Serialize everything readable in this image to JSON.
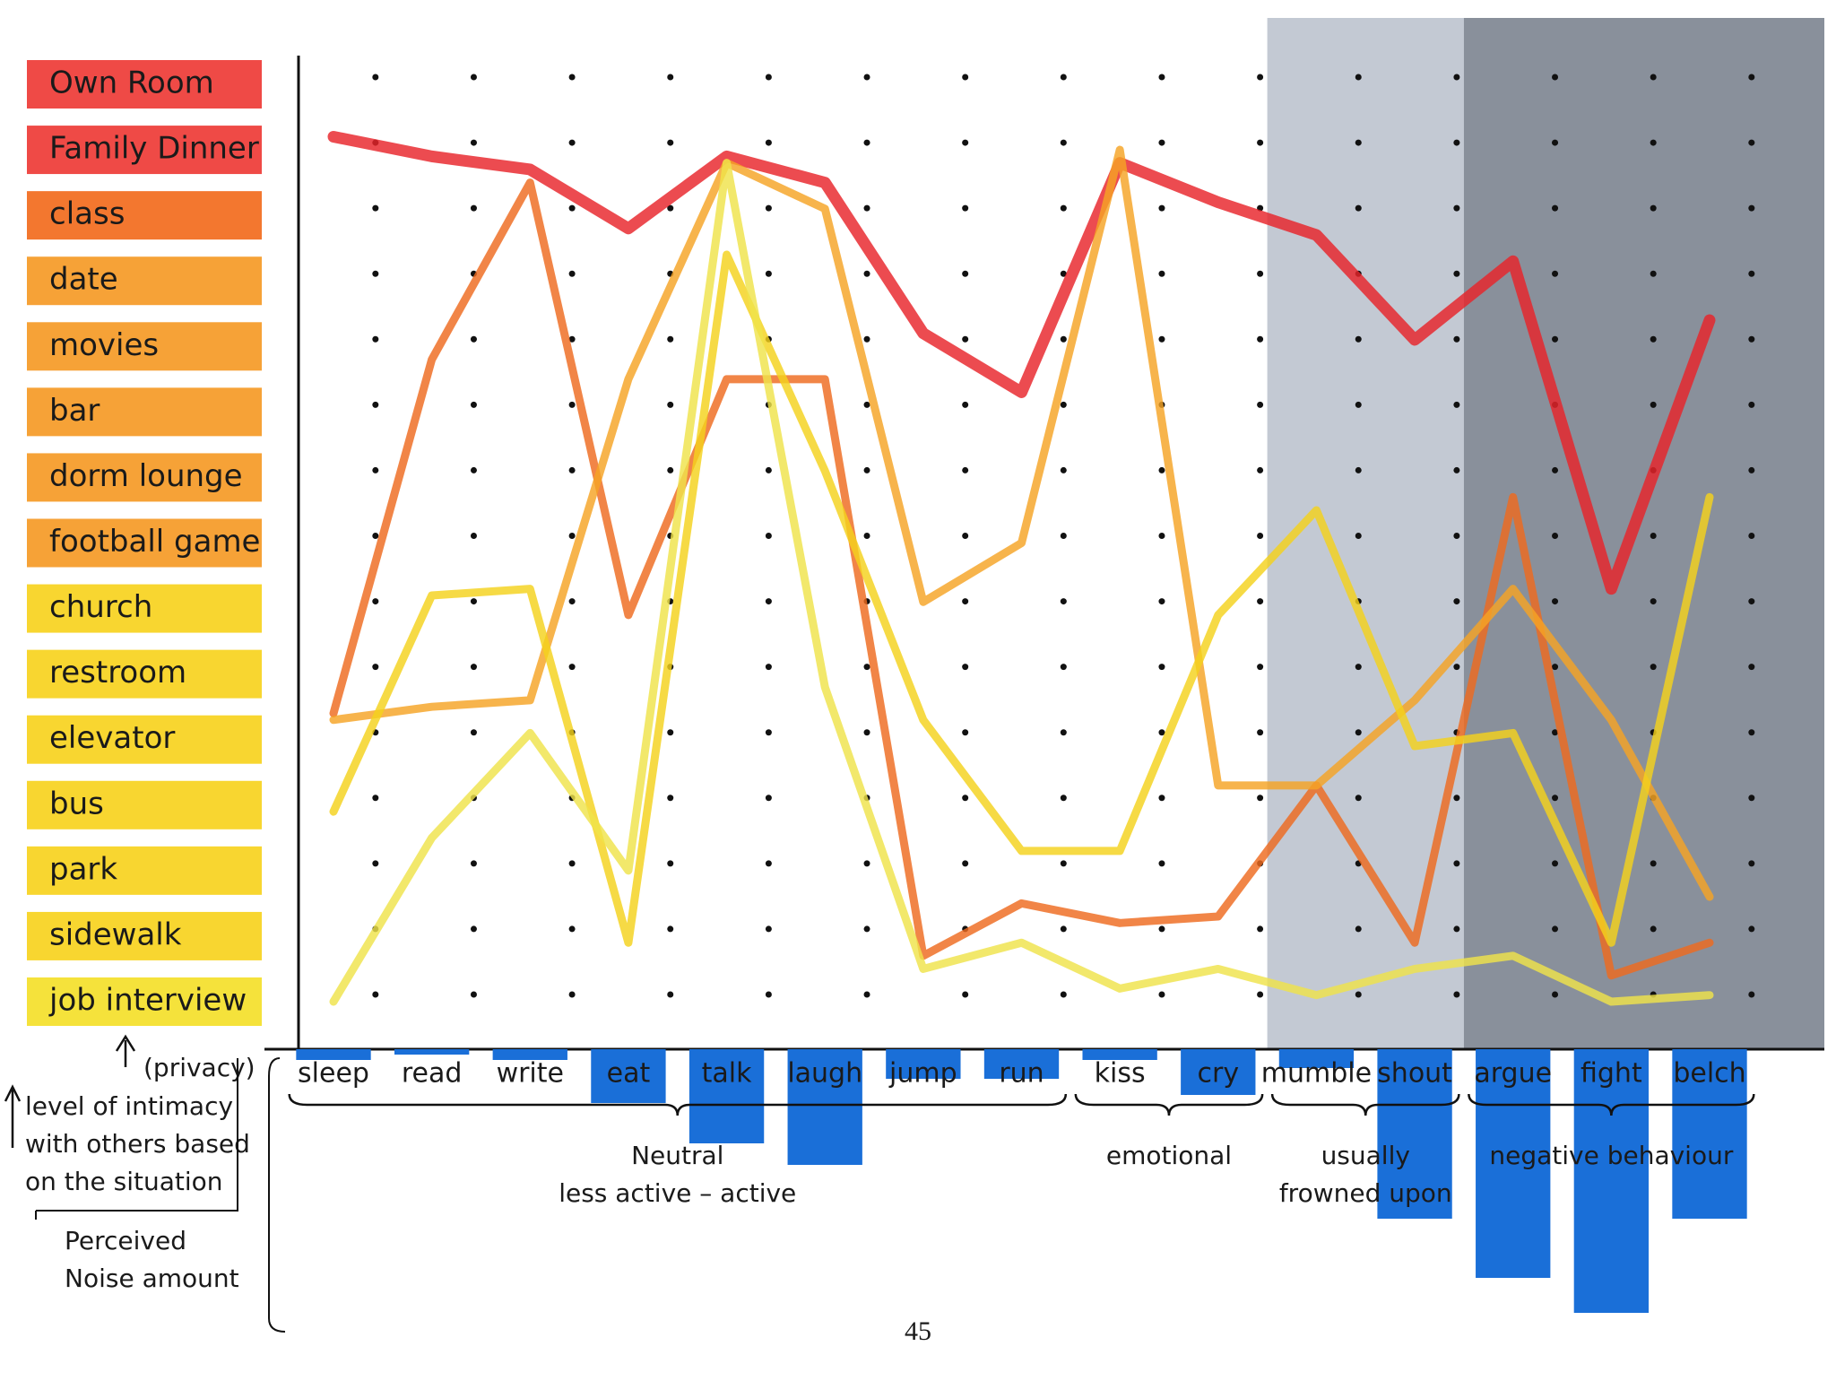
{
  "chart_data": {
    "type": "line",
    "categories": [
      "sleep",
      "read",
      "write",
      "eat",
      "talk",
      "laugh",
      "jump",
      "run",
      "kiss",
      "cry",
      "mumble",
      "shout",
      "argue",
      "fight",
      "belch"
    ],
    "ylim": [
      0,
      14
    ],
    "yticks": [
      {
        "value": 14,
        "label": "Own Room"
      },
      {
        "value": 13,
        "label": "Family Dinner"
      },
      {
        "value": 12,
        "label": "class"
      },
      {
        "value": 11,
        "label": "date"
      },
      {
        "value": 10,
        "label": "movies"
      },
      {
        "value": 9,
        "label": "bar"
      },
      {
        "value": 8,
        "label": "dorm lounge"
      },
      {
        "value": 7,
        "label": "football game"
      },
      {
        "value": 6,
        "label": "church"
      },
      {
        "value": 5,
        "label": "restroom"
      },
      {
        "value": 4,
        "label": "elevator"
      },
      {
        "value": 3,
        "label": "bus"
      },
      {
        "value": 2,
        "label": "park"
      },
      {
        "value": 1,
        "label": "sidewalk"
      },
      {
        "value": 0,
        "label": "job interview"
      }
    ],
    "ytick_colors": [
      "#ee3b36",
      "#ee3b36",
      "#f26b1d",
      "#f59a26",
      "#f59a26",
      "#f59a26",
      "#f59a26",
      "#f59a26",
      "#f7d21e",
      "#f7d21e",
      "#f7d21e",
      "#f7d21e",
      "#f7d21e",
      "#f7d21e",
      "#f4e02a"
    ],
    "grid": true,
    "series": [
      {
        "color": "#e8232a",
        "values": [
          13.2,
          12.9,
          12.7,
          11.8,
          12.9,
          12.5,
          10.2,
          9.3,
          12.8,
          12.2,
          11.7,
          10.1,
          11.3,
          6.3,
          10.4
        ]
      },
      {
        "color": "#ee6a1f",
        "values": [
          4.4,
          9.8,
          12.5,
          5.9,
          9.5,
          9.5,
          0.7,
          1.5,
          1.2,
          1.3,
          3.3,
          0.9,
          7.7,
          0.4,
          0.9
        ]
      },
      {
        "color": "#f5a324",
        "values": [
          4.3,
          4.5,
          4.6,
          9.5,
          12.8,
          12.1,
          6.1,
          7.0,
          13.0,
          3.3,
          3.3,
          4.6,
          6.3,
          4.3,
          1.6
        ]
      },
      {
        "color": "#f4d21c",
        "values": [
          2.9,
          6.2,
          6.3,
          0.9,
          11.4,
          8.1,
          4.3,
          2.3,
          2.3,
          5.9,
          7.5,
          3.9,
          4.1,
          0.9,
          7.7
        ]
      },
      {
        "color": "#efe34a",
        "values": [
          0,
          2.5,
          4.1,
          2.0,
          12.8,
          4.8,
          0.5,
          0.9,
          0.2,
          0.5,
          0.1,
          0.5,
          0.7,
          0,
          0.1
        ]
      }
    ],
    "noise": {
      "color": "#1a6fd8",
      "lim": [
        0,
        10
      ],
      "values": [
        0.4,
        0.2,
        0.4,
        2.0,
        3.5,
        4.3,
        1.1,
        1.1,
        0.4,
        1.7,
        0.7,
        6.3,
        8.5,
        9.8,
        6.3
      ]
    },
    "groups": [
      {
        "label": [
          "Neutral",
          "less active  –  active"
        ],
        "from": 0,
        "to": 7
      },
      {
        "label": [
          "emotional"
        ],
        "from": 8,
        "to": 9
      },
      {
        "label": [
          "usually",
          "frowned upon"
        ],
        "from": 10,
        "to": 11,
        "shade": "#b9c0cb"
      },
      {
        "label": [
          "negative behaviour"
        ],
        "from": 12,
        "to": 14,
        "shade": "#747c89"
      }
    ],
    "y_axis_note": "(privacy)",
    "y_axis_label": [
      "level of intimacy",
      "with others based",
      "on the situation"
    ],
    "noise_label": [
      "Perceived",
      "Noise amount"
    ],
    "page_number": "45"
  }
}
